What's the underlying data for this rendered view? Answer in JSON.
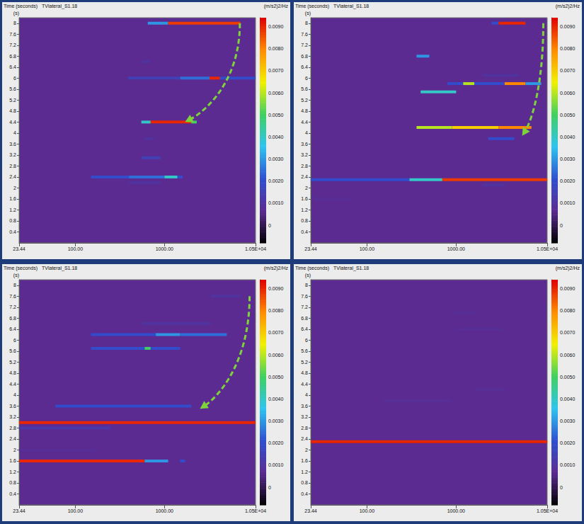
{
  "chart_data": [
    {
      "type": "heatmap",
      "title": "Time (seconds)",
      "subtitle": "TVlateral_S1.18",
      "y_label": "(s)",
      "colorbar_label": "(m/s2)2/Hz",
      "log": "x",
      "xlim": [
        23.44,
        10500
      ],
      "xticks": [
        {
          "value": 23.44,
          "label": "23.44"
        },
        {
          "value": 100,
          "label": "100.00"
        },
        {
          "value": 1000,
          "label": "1000.00"
        },
        {
          "value": 10500,
          "label": "1.05E+04"
        }
      ],
      "ylim": [
        0,
        8.2
      ],
      "yticks": [
        0.4,
        0.8,
        1.2,
        1.6,
        2,
        2.4,
        2.8,
        3.2,
        3.6,
        4,
        4.4,
        4.8,
        5.2,
        5.6,
        6,
        6.4,
        6.8,
        7.2,
        7.6,
        8
      ],
      "colorbar_range": [
        -0.0008,
        0.0094
      ],
      "colorbar_ticks": [
        0,
        {
          "value": 0.001,
          "label": "0.0010"
        },
        {
          "value": 0.002,
          "label": "0.0020"
        },
        {
          "value": 0.003,
          "label": "0.0030"
        },
        {
          "value": 0.004,
          "label": "0.0040"
        },
        {
          "value": 0.005,
          "label": "0.0050"
        },
        {
          "value": 0.006,
          "label": "0.0060"
        },
        {
          "value": 0.007,
          "label": "0.0070"
        },
        {
          "value": 0.008,
          "label": "0.0080"
        },
        {
          "value": 0.009,
          "label": "0.0090"
        }
      ],
      "cells": [
        {
          "time": 8,
          "from": 650,
          "to": 1100,
          "value": 0.003
        },
        {
          "time": 8,
          "from": 1100,
          "to": 7100,
          "value": 0.0088
        },
        {
          "time": 6.6,
          "from": 560,
          "to": 700,
          "value": 0.001
        },
        {
          "time": 6,
          "from": 390,
          "to": 1500,
          "value": 0.0015
        },
        {
          "time": 6,
          "from": 1500,
          "to": 3200,
          "value": 0.0025
        },
        {
          "time": 6,
          "from": 3200,
          "to": 4200,
          "value": 0.009
        },
        {
          "time": 6,
          "from": 4200,
          "to": 10500,
          "value": 0.002
        },
        {
          "time": 4.4,
          "from": 550,
          "to": 700,
          "value": 0.004
        },
        {
          "time": 4.4,
          "from": 700,
          "to": 2000,
          "value": 0.009
        },
        {
          "time": 4.4,
          "from": 2000,
          "to": 2300,
          "value": 0.005
        },
        {
          "time": 3.8,
          "from": 600,
          "to": 750,
          "value": 0.001
        },
        {
          "time": 3.1,
          "from": 550,
          "to": 900,
          "value": 0.0015
        },
        {
          "time": 2.4,
          "from": 150,
          "to": 400,
          "value": 0.002
        },
        {
          "time": 2.4,
          "from": 400,
          "to": 1000,
          "value": 0.0025
        },
        {
          "time": 2.4,
          "from": 1000,
          "to": 1400,
          "value": 0.004
        },
        {
          "time": 2.4,
          "from": 1400,
          "to": 1600,
          "value": 0.002
        },
        {
          "time": 2.2,
          "from": 400,
          "to": 900,
          "value": 0.001
        }
      ],
      "arrows": [
        {
          "from": [
            7000,
            8
          ],
          "to": [
            1700,
            4.4
          ]
        }
      ]
    },
    {
      "type": "heatmap",
      "title": "Time (seconds)",
      "subtitle": "TVlateral_S1.18",
      "y_label": "(s)",
      "colorbar_label": "(m/s2)2/Hz",
      "log": "x",
      "xlim": [
        23.44,
        10500
      ],
      "xticks": [
        {
          "value": 23.44,
          "label": "23.44"
        },
        {
          "value": 100,
          "label": "100.00"
        },
        {
          "value": 1000,
          "label": "1000.00"
        },
        {
          "value": 10500,
          "label": "1.05E+04"
        }
      ],
      "ylim": [
        0,
        8.2
      ],
      "yticks": [
        0.4,
        0.8,
        1.2,
        1.6,
        2,
        2.4,
        2.8,
        3.2,
        3.6,
        4,
        4.4,
        4.8,
        5.2,
        5.6,
        6,
        6.4,
        6.8,
        7.2,
        7.6,
        8
      ],
      "colorbar_range": [
        -0.0008,
        0.0094
      ],
      "colorbar_ticks": [
        0,
        {
          "value": 0.001,
          "label": "0.0010"
        },
        {
          "value": 0.002,
          "label": "0.0020"
        },
        {
          "value": 0.003,
          "label": "0.0030"
        },
        {
          "value": 0.004,
          "label": "0.0040"
        },
        {
          "value": 0.005,
          "label": "0.0050"
        },
        {
          "value": 0.006,
          "label": "0.0060"
        },
        {
          "value": 0.007,
          "label": "0.0070"
        },
        {
          "value": 0.008,
          "label": "0.0080"
        },
        {
          "value": 0.009,
          "label": "0.0090"
        }
      ],
      "cells": [
        {
          "time": 8,
          "from": 2500,
          "to": 3000,
          "value": 0.002
        },
        {
          "time": 8,
          "from": 3000,
          "to": 6000,
          "value": 0.009
        },
        {
          "time": 6.8,
          "from": 360,
          "to": 500,
          "value": 0.003
        },
        {
          "time": 6.1,
          "from": 2000,
          "to": 5000,
          "value": 0.001
        },
        {
          "time": 5.8,
          "from": 800,
          "to": 1200,
          "value": 0.002
        },
        {
          "time": 5.8,
          "from": 1200,
          "to": 1600,
          "value": 0.006
        },
        {
          "time": 5.8,
          "from": 1600,
          "to": 3500,
          "value": 0.002
        },
        {
          "time": 5.8,
          "from": 3500,
          "to": 6000,
          "value": 0.008
        },
        {
          "time": 5.8,
          "from": 6000,
          "to": 9000,
          "value": 0.003
        },
        {
          "time": 5.5,
          "from": 400,
          "to": 1000,
          "value": 0.004
        },
        {
          "time": 4.2,
          "from": 360,
          "to": 900,
          "value": 0.006
        },
        {
          "time": 4.2,
          "from": 900,
          "to": 3000,
          "value": 0.007
        },
        {
          "time": 4.2,
          "from": 3000,
          "to": 7000,
          "value": 0.008
        },
        {
          "time": 3.8,
          "from": 2300,
          "to": 4500,
          "value": 0.002
        },
        {
          "time": 2.3,
          "from": 23.44,
          "to": 300,
          "value": 0.002
        },
        {
          "time": 2.3,
          "from": 300,
          "to": 700,
          "value": 0.004
        },
        {
          "time": 2.3,
          "from": 700,
          "to": 10500,
          "value": 0.0088
        },
        {
          "time": 2.1,
          "from": 2000,
          "to": 3500,
          "value": 0.001
        },
        {
          "time": 1.6,
          "from": 25,
          "to": 70,
          "value": 0.0008
        }
      ],
      "arrows": [
        {
          "from": [
            9500,
            8
          ],
          "to": [
            5500,
            3.9
          ]
        }
      ]
    },
    {
      "type": "heatmap",
      "title": "Time (seconds)",
      "subtitle": "TVlateral_S1.18",
      "y_label": "(s)",
      "colorbar_label": "(m/s2)2/Hz",
      "log": "x",
      "xlim": [
        23.44,
        10500
      ],
      "xticks": [
        {
          "value": 23.44,
          "label": "23.44"
        },
        {
          "value": 100,
          "label": "100.00"
        },
        {
          "value": 1000,
          "label": "1000.00"
        },
        {
          "value": 10500,
          "label": "1.05E+04"
        }
      ],
      "ylim": [
        0,
        8.2
      ],
      "yticks": [
        0.4,
        0.8,
        1.2,
        1.6,
        2,
        2.4,
        2.8,
        3.2,
        3.6,
        4,
        4.4,
        4.8,
        5.2,
        5.6,
        6,
        6.4,
        6.8,
        7.2,
        7.6,
        8
      ],
      "colorbar_range": [
        -0.0008,
        0.0094
      ],
      "colorbar_ticks": [
        0,
        {
          "value": 0.001,
          "label": "0.0010"
        },
        {
          "value": 0.002,
          "label": "0.0020"
        },
        {
          "value": 0.003,
          "label": "0.0030"
        },
        {
          "value": 0.004,
          "label": "0.0040"
        },
        {
          "value": 0.005,
          "label": "0.0050"
        },
        {
          "value": 0.006,
          "label": "0.0060"
        },
        {
          "value": 0.007,
          "label": "0.0070"
        },
        {
          "value": 0.008,
          "label": "0.0080"
        },
        {
          "value": 0.009,
          "label": "0.0090"
        }
      ],
      "cells": [
        {
          "time": 7.6,
          "from": 3300,
          "to": 7000,
          "value": 0.001
        },
        {
          "time": 6.6,
          "from": 560,
          "to": 3300,
          "value": 0.001
        },
        {
          "time": 6.2,
          "from": 150,
          "to": 800,
          "value": 0.002
        },
        {
          "time": 6.2,
          "from": 800,
          "to": 1500,
          "value": 0.003
        },
        {
          "time": 6.2,
          "from": 1500,
          "to": 5000,
          "value": 0.0025
        },
        {
          "time": 5.7,
          "from": 150,
          "to": 600,
          "value": 0.002
        },
        {
          "time": 5.7,
          "from": 600,
          "to": 700,
          "value": 0.005
        },
        {
          "time": 5.7,
          "from": 700,
          "to": 1500,
          "value": 0.002
        },
        {
          "time": 3.6,
          "from": 60,
          "to": 2000,
          "value": 0.002
        },
        {
          "time": 3,
          "from": 23.44,
          "to": 10500,
          "value": 0.009
        },
        {
          "time": 2.8,
          "from": 23.44,
          "to": 250,
          "value": 0.0012
        },
        {
          "time": 2,
          "from": 23.44,
          "to": 170,
          "value": 0.0008
        },
        {
          "time": 1.6,
          "from": 23.44,
          "to": 600,
          "value": 0.009
        },
        {
          "time": 1.6,
          "from": 600,
          "to": 1100,
          "value": 0.003
        },
        {
          "time": 1.6,
          "from": 1500,
          "to": 1700,
          "value": 0.002
        }
      ],
      "arrows": [
        {
          "from": [
            9000,
            7.6
          ],
          "to": [
            2500,
            3.5
          ]
        }
      ]
    },
    {
      "type": "heatmap",
      "title": "Time (seconds)",
      "subtitle": "TVlateral_S1.18",
      "y_label": "(s)",
      "colorbar_label": "(m/s2)2/Hz",
      "log": "x",
      "xlim": [
        23.44,
        10500
      ],
      "xticks": [
        {
          "value": 23.44,
          "label": "23.44"
        },
        {
          "value": 100,
          "label": "100.00"
        },
        {
          "value": 1000,
          "label": "1000.00"
        },
        {
          "value": 10500,
          "label": "1.05E+04"
        }
      ],
      "ylim": [
        0,
        8.2
      ],
      "yticks": [
        0.4,
        0.8,
        1.2,
        1.6,
        2,
        2.4,
        2.8,
        3.2,
        3.6,
        4,
        4.4,
        4.8,
        5.2,
        5.6,
        6,
        6.4,
        6.8,
        7.2,
        7.6,
        8
      ],
      "colorbar_range": [
        -0.0008,
        0.0094
      ],
      "colorbar_ticks": [
        0,
        {
          "value": 0.001,
          "label": "0.0010"
        },
        {
          "value": 0.002,
          "label": "0.0020"
        },
        {
          "value": 0.003,
          "label": "0.0030"
        },
        {
          "value": 0.004,
          "label": "0.0040"
        },
        {
          "value": 0.005,
          "label": "0.0050"
        },
        {
          "value": 0.006,
          "label": "0.0060"
        },
        {
          "value": 0.007,
          "label": "0.0070"
        },
        {
          "value": 0.008,
          "label": "0.0080"
        },
        {
          "value": 0.009,
          "label": "0.0090"
        }
      ],
      "cells": [
        {
          "time": 7,
          "from": 900,
          "to": 1600,
          "value": 0.0008
        },
        {
          "time": 6.4,
          "from": 1000,
          "to": 3300,
          "value": 0.0008
        },
        {
          "time": 4.2,
          "from": 1600,
          "to": 3500,
          "value": 0.0008
        },
        {
          "time": 3.8,
          "from": 150,
          "to": 900,
          "value": 0.0008
        },
        {
          "time": 2.3,
          "from": 23.44,
          "to": 10500,
          "value": 0.009
        }
      ],
      "arrows": []
    }
  ]
}
